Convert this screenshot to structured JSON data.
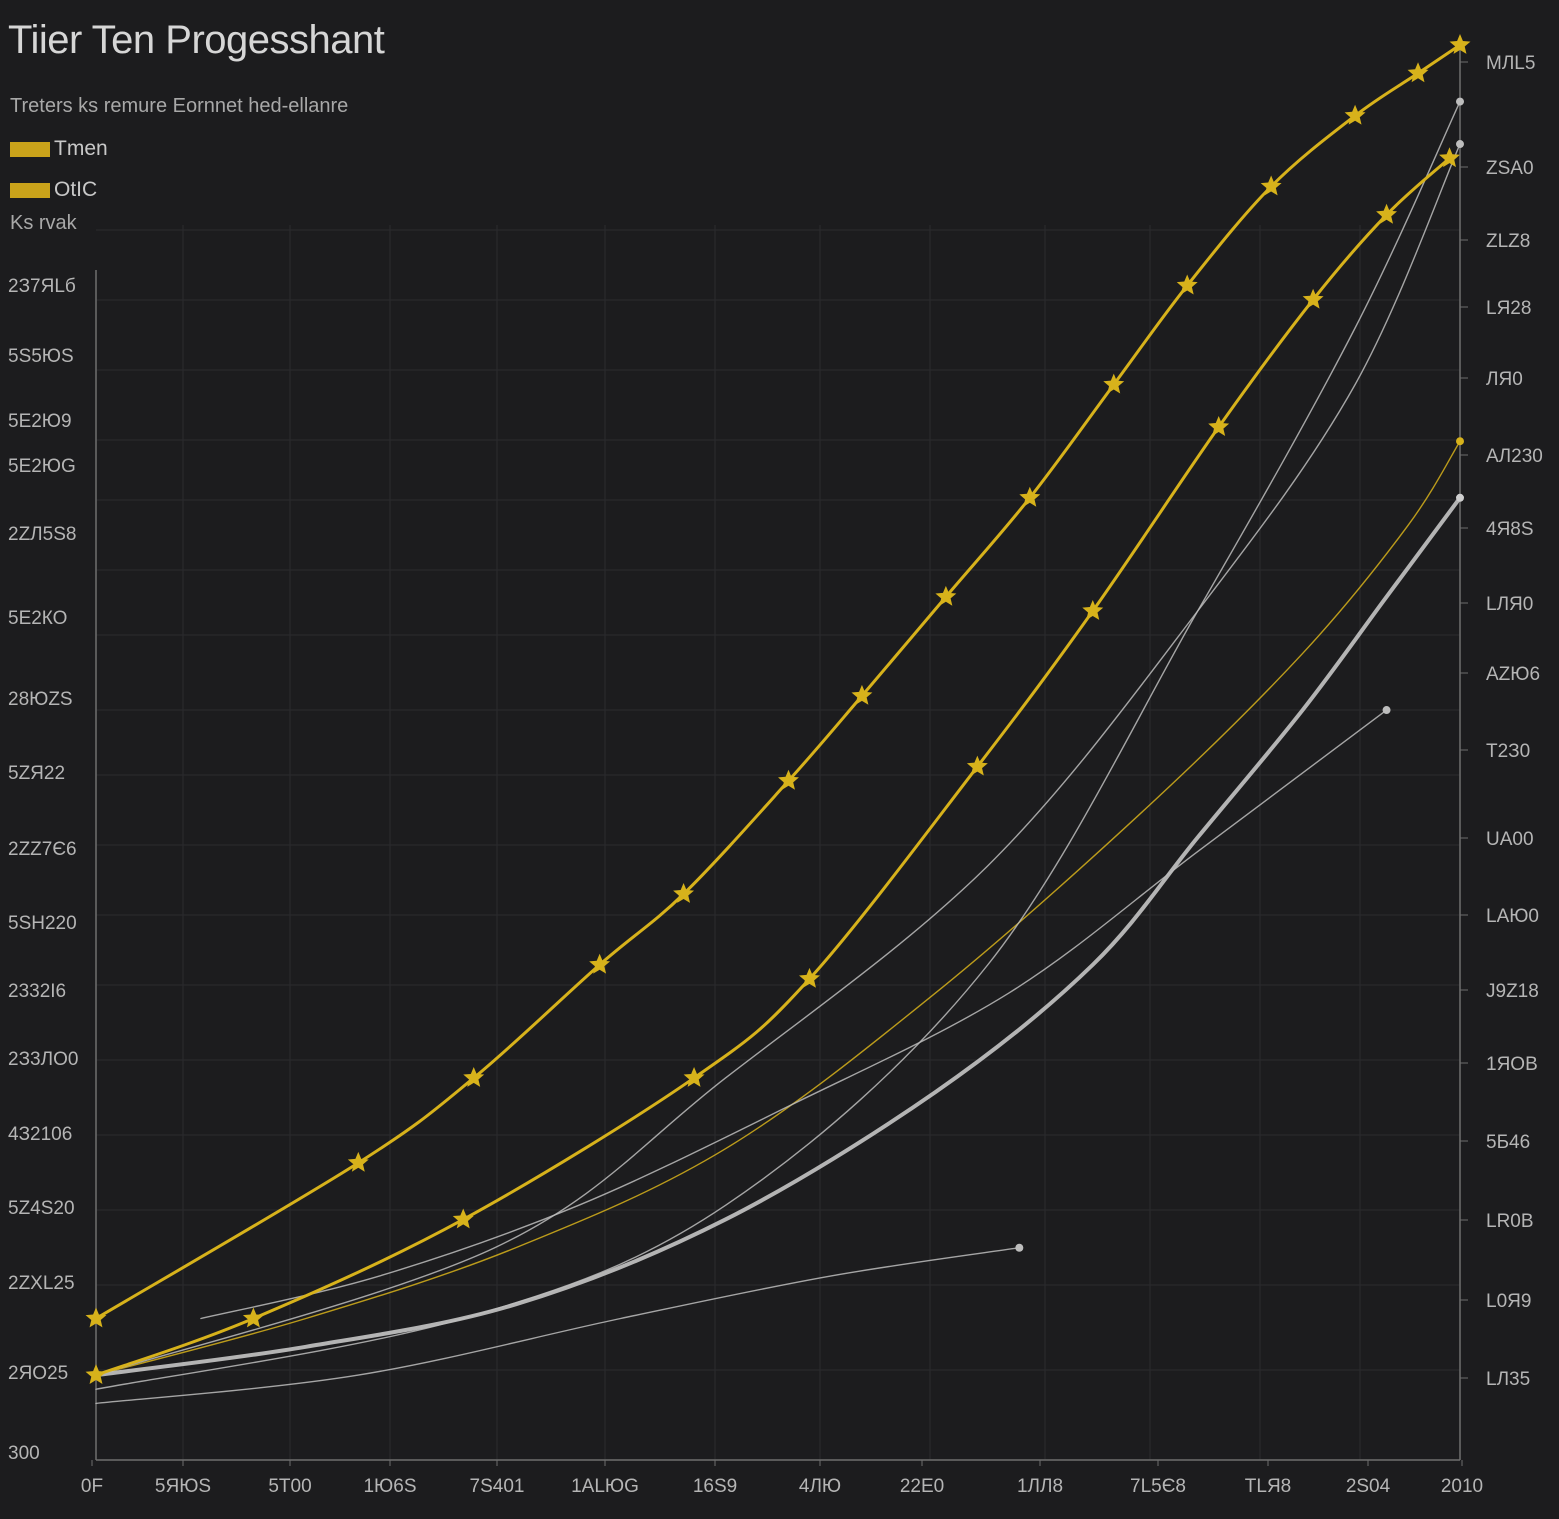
{
  "chart_data": {
    "type": "line",
    "title": "Tiier Ten Progesshant",
    "subtitle": "Treters ks remure Eornnet hed-ellanre",
    "ylabel": "Ks rvak",
    "legend_position": "top-left",
    "grid": true,
    "left_ticks": [
      "300",
      "2ЯО25",
      "2ZXL25",
      "5Z4S20",
      "4З2106",
      "2З3ЛО0",
      "2332I6",
      "5SH220",
      "2ZZ7Є6",
      "5ZЯ22",
      "28ЮZS",
      "5E2КО",
      "2ZЛ5S8",
      "5E2ЮG",
      "5E2Ю9",
      "5S5ЮS",
      "2З7ЯLб"
    ],
    "right_ticks": [
      "LЛ35",
      "L0Я9",
      "LR0B",
      "5Б46",
      "1ЯОВ",
      "J9Z18",
      "LAЮ0",
      "UA00",
      "T2З0",
      "AZЮ6",
      "LЛЯ0",
      "4Я8S",
      "AЛ230",
      "ЛЯ0",
      "LЯ28",
      "ZLZ8",
      "ZSA0",
      "MЛL5"
    ],
    "x_ticks": [
      "0F",
      "5ЯЮS",
      "5Т00",
      "1Ю6S",
      "7S401",
      "1ALЮG",
      "16S9",
      "4ЛЮ",
      "22Е0",
      "1ЛЛ8",
      "7L5Є8",
      "TLЯ8",
      "2S04",
      "2010"
    ],
    "colors": {
      "accent": "#d7b21b",
      "secondary": "#cfcfcf",
      "grid": "#2b2b2e",
      "axis": "#6e6e6e"
    },
    "xlim": [
      0,
      13
    ],
    "ylim": [
      0,
      100
    ],
    "series": [
      {
        "name": "Tmen",
        "color": "#d7b21b",
        "marker": "star",
        "x": [
          0,
          2.5,
          3.6,
          4.8,
          5.6,
          6.6,
          7.3,
          8.1,
          8.9,
          9.7,
          10.4,
          11.2,
          12.0,
          12.6,
          13.0
        ],
        "y": [
          10,
          21,
          27,
          35,
          40,
          48,
          54,
          61,
          68,
          76,
          83,
          90,
          95,
          98,
          100
        ]
      },
      {
        "name": "OtIC",
        "color": "#d7b21b",
        "marker": "star",
        "x": [
          0,
          1.5,
          3.5,
          5.7,
          6.8,
          8.4,
          9.5,
          10.7,
          11.6,
          12.3,
          12.9
        ],
        "y": [
          6,
          10,
          17,
          27,
          34,
          49,
          60,
          73,
          82,
          88,
          92
        ]
      },
      {
        "color": "#d7b21b",
        "marker": "none",
        "x": [
          0,
          2,
          4,
          6,
          8,
          10,
          11.5,
          12.5,
          13.0
        ],
        "y": [
          6,
          10,
          15,
          22,
          33,
          46,
          57,
          66,
          72
        ]
      },
      {
        "color": "#cfcfcf",
        "marker": "none",
        "x": [
          0,
          2,
          4,
          6,
          8,
          9.5,
          10.5,
          11.5,
          12.3,
          13.0
        ],
        "y": [
          6,
          8,
          11,
          17,
          26,
          35,
          44,
          53,
          61,
          68
        ]
      },
      {
        "color": "#bdbdbd",
        "marker": "none",
        "x": [
          0,
          3.5,
          6,
          8.5,
          10.5,
          12.0,
          13.0
        ],
        "y": [
          5,
          10,
          18,
          35,
          60,
          80,
          96
        ]
      },
      {
        "color": "#bdbdbd",
        "marker": "none",
        "x": [
          0,
          3.8,
          6,
          8.5,
          10.5,
          12.0,
          13.0
        ],
        "y": [
          6,
          15,
          27,
          42,
          60,
          76,
          93
        ]
      },
      {
        "color": "#bdbdbd",
        "marker": "none",
        "x": [
          1.0,
          2.7,
          4.6,
          6.6,
          8.7,
          10.5,
          12.3
        ],
        "y": [
          10,
          13,
          18,
          25,
          33,
          43,
          53
        ]
      },
      {
        "color": "#bdbdbd",
        "marker": "none",
        "x": [
          0,
          2.5,
          5.0,
          7.0,
          8.8
        ],
        "y": [
          4,
          6,
          10,
          13,
          15
        ]
      }
    ]
  }
}
